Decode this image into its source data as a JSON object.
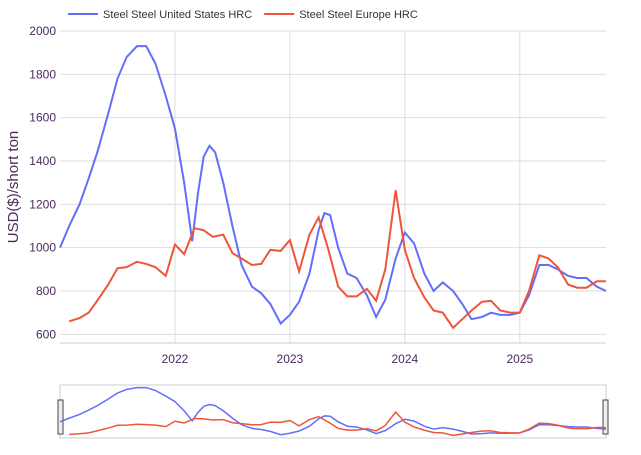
{
  "chart_data": {
    "type": "line",
    "y_label": "USD($)/short ton",
    "xlim": [
      2021,
      2025.75
    ],
    "xticks": [
      2022,
      2023,
      2024,
      2025
    ],
    "ylim": [
      560,
      2000
    ],
    "yticks": [
      {
        "value": 600,
        "label": "600"
      },
      {
        "value": 800,
        "label": "800"
      },
      {
        "value": 1000,
        "label": "1000"
      },
      {
        "value": 1200,
        "label": "1200"
      },
      {
        "value": 1400,
        "label": "1400"
      },
      {
        "value": 1600,
        "label": "1600"
      },
      {
        "value": 1800,
        "label": "1800"
      },
      {
        "value": 2000,
        "label": "2000"
      }
    ],
    "grid": true,
    "legend": "top",
    "series": [
      {
        "name": "Steel Steel United States HRC",
        "color": "#636efa",
        "x": [
          2021.0,
          2021.08,
          2021.17,
          2021.25,
          2021.33,
          2021.42,
          2021.5,
          2021.58,
          2021.67,
          2021.75,
          2021.83,
          2021.92,
          2022.0,
          2022.08,
          2022.15,
          2022.2,
          2022.25,
          2022.3,
          2022.35,
          2022.42,
          2022.5,
          2022.58,
          2022.67,
          2022.75,
          2022.83,
          2022.92,
          2023.0,
          2023.08,
          2023.17,
          2023.25,
          2023.3,
          2023.35,
          2023.42,
          2023.5,
          2023.58,
          2023.67,
          2023.75,
          2023.83,
          2023.92,
          2024.0,
          2024.08,
          2024.17,
          2024.25,
          2024.33,
          2024.42,
          2024.5,
          2024.58,
          2024.67,
          2024.75,
          2024.83,
          2024.92,
          2025.0,
          2025.08,
          2025.17,
          2025.25,
          2025.33,
          2025.42,
          2025.5,
          2025.58,
          2025.67,
          2025.75
        ],
        "values": [
          1000,
          1100,
          1200,
          1320,
          1450,
          1620,
          1780,
          1880,
          1930,
          1930,
          1850,
          1700,
          1550,
          1300,
          1030,
          1250,
          1420,
          1470,
          1440,
          1300,
          1100,
          920,
          820,
          790,
          740,
          650,
          690,
          750,
          880,
          1080,
          1160,
          1150,
          1000,
          880,
          860,
          780,
          680,
          760,
          950,
          1070,
          1020,
          880,
          800,
          840,
          800,
          740,
          670,
          680,
          700,
          690,
          690,
          700,
          780,
          920,
          920,
          900,
          870,
          860,
          860,
          820,
          800
        ]
      },
      {
        "name": "Steel Steel Europe HRC",
        "color": "#ef553b",
        "x": [
          2021.08,
          2021.17,
          2021.25,
          2021.33,
          2021.42,
          2021.5,
          2021.58,
          2021.67,
          2021.75,
          2021.83,
          2021.92,
          2022.0,
          2022.08,
          2022.17,
          2022.25,
          2022.33,
          2022.42,
          2022.5,
          2022.58,
          2022.67,
          2022.75,
          2022.83,
          2022.92,
          2023.0,
          2023.08,
          2023.17,
          2023.25,
          2023.33,
          2023.42,
          2023.5,
          2023.58,
          2023.67,
          2023.75,
          2023.83,
          2023.92,
          2024.0,
          2024.08,
          2024.17,
          2024.25,
          2024.33,
          2024.42,
          2024.5,
          2024.58,
          2024.67,
          2024.75,
          2024.83,
          2024.92,
          2025.0,
          2025.08,
          2025.17,
          2025.25,
          2025.33,
          2025.42,
          2025.5,
          2025.58,
          2025.67,
          2025.75
        ],
        "values": [
          660,
          675,
          700,
          760,
          830,
          905,
          910,
          935,
          925,
          910,
          870,
          1015,
          970,
          1090,
          1080,
          1050,
          1060,
          975,
          950,
          920,
          925,
          990,
          985,
          1035,
          890,
          1060,
          1140,
          1000,
          820,
          775,
          775,
          810,
          755,
          900,
          1265,
          990,
          860,
          770,
          710,
          700,
          630,
          670,
          710,
          750,
          755,
          710,
          700,
          700,
          800,
          965,
          950,
          910,
          830,
          815,
          815,
          845,
          845
        ]
      }
    ]
  }
}
